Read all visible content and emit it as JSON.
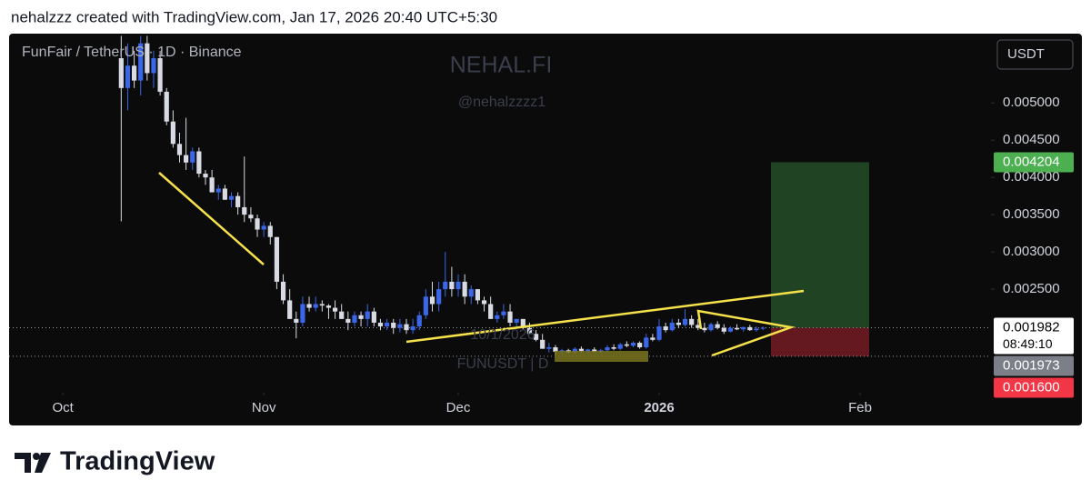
{
  "page": {
    "header": "nehalzzz created with TradingView.com, Jan 17, 2026 20:40 UTC+5:30",
    "logo": "TradingView"
  },
  "chart_data": {
    "type": "candlestick",
    "title": "FunFair / TetherUS · 1D · Binance",
    "currency": "USDT",
    "watermark": "NEHAL.FI",
    "watermark_sub": "@nehalzzzz1",
    "annotations": [
      "10/1/2026",
      "FUNUSDT | D"
    ],
    "countdown": "08:49:10",
    "up_color": "#3a66e8",
    "down_color": "#d8dbe3",
    "xlim": [
      -17.3,
      134.2
    ],
    "xticks": [
      {
        "value": -9,
        "label": "Oct"
      },
      {
        "value": 22,
        "label": "Nov"
      },
      {
        "value": 52,
        "label": "Dec"
      },
      {
        "value": 83,
        "label": "2026"
      },
      {
        "value": 114,
        "label": "Feb"
      }
    ],
    "ylim": [
      0.00111,
      0.00593
    ],
    "yticks": [
      {
        "value": 0.0025,
        "label": "0.002500"
      },
      {
        "value": 0.003,
        "label": "0.003000"
      },
      {
        "value": 0.0035,
        "label": "0.003500"
      },
      {
        "value": 0.004,
        "label": "0.004000"
      },
      {
        "value": 0.0045,
        "label": "0.004500"
      },
      {
        "value": 0.005,
        "label": "0.005000"
      }
    ],
    "price_labels": [
      {
        "value": 0.004204,
        "label": "0.004204",
        "color": "#4caf50",
        "text_color": "#ffffff"
      },
      {
        "value": 0.001982,
        "label": "0.001982",
        "color": "#ffffff",
        "text_color": "#000000"
      },
      {
        "value": 0.001973,
        "label": "0.001973",
        "color": "#7c7f88",
        "text_color": "#ffffff"
      },
      {
        "value": 0.0016,
        "label": "0.001600",
        "color": "#f23645",
        "text_color": "#ffffff"
      }
    ],
    "ohlc": [
      [
        0.0056,
        0.0059,
        0.00341,
        0.0052
      ],
      [
        0.0052,
        0.0058,
        0.0049,
        0.0055
      ],
      [
        0.0055,
        0.0057,
        0.0052,
        0.0053
      ],
      [
        0.0053,
        0.0059,
        0.0051,
        0.0058
      ],
      [
        0.0058,
        0.0059,
        0.0053,
        0.0054
      ],
      [
        0.0054,
        0.0057,
        0.0052,
        0.0056
      ],
      [
        0.0056,
        0.0057,
        0.0051,
        0.00515
      ],
      [
        0.00515,
        0.0052,
        0.0047,
        0.00475
      ],
      [
        0.00475,
        0.0049,
        0.0044,
        0.00445
      ],
      [
        0.00445,
        0.0046,
        0.0042,
        0.0043
      ],
      [
        0.0043,
        0.0048,
        0.0041,
        0.0042
      ],
      [
        0.0042,
        0.0044,
        0.0041,
        0.00435
      ],
      [
        0.00435,
        0.0044,
        0.004,
        0.00405
      ],
      [
        0.00405,
        0.0041,
        0.0039,
        0.004
      ],
      [
        0.004,
        0.0041,
        0.0038,
        0.0038
      ],
      [
        0.0038,
        0.0039,
        0.0037,
        0.00385
      ],
      [
        0.00385,
        0.0039,
        0.0037,
        0.0037
      ],
      [
        0.0037,
        0.0038,
        0.0036,
        0.00375
      ],
      [
        0.00375,
        0.0038,
        0.0035,
        0.0036
      ],
      [
        0.0036,
        0.00428,
        0.0034,
        0.0035
      ],
      [
        0.0035,
        0.0036,
        0.0034,
        0.00345
      ],
      [
        0.00345,
        0.0035,
        0.0032,
        0.0033
      ],
      [
        0.0033,
        0.0034,
        0.0032,
        0.00335
      ],
      [
        0.00335,
        0.0034,
        0.0031,
        0.0032
      ],
      [
        0.0032,
        0.0032,
        0.0025,
        0.0026
      ],
      [
        0.0026,
        0.0027,
        0.0023,
        0.00235
      ],
      [
        0.00235,
        0.0025,
        0.0021,
        0.0021
      ],
      [
        0.0021,
        0.0022,
        0.00184,
        0.00205
      ],
      [
        0.00205,
        0.0024,
        0.002,
        0.0023
      ],
      [
        0.0023,
        0.0024,
        0.0022,
        0.00225
      ],
      [
        0.00225,
        0.0024,
        0.0022,
        0.0023
      ],
      [
        0.0023,
        0.00235,
        0.0022,
        0.00228
      ],
      [
        0.00228,
        0.0023,
        0.0021,
        0.00225
      ],
      [
        0.00225,
        0.00235,
        0.0021,
        0.0022
      ],
      [
        0.0022,
        0.0023,
        0.0021,
        0.0021
      ],
      [
        0.0021,
        0.0022,
        0.00195,
        0.00205
      ],
      [
        0.00205,
        0.0022,
        0.002,
        0.00215
      ],
      [
        0.00215,
        0.0022,
        0.002,
        0.0021
      ],
      [
        0.0021,
        0.0023,
        0.002,
        0.0022
      ],
      [
        0.0022,
        0.00225,
        0.002,
        0.00205
      ],
      [
        0.00205,
        0.0021,
        0.00195,
        0.002
      ],
      [
        0.002,
        0.0021,
        0.00195,
        0.00205
      ],
      [
        0.00205,
        0.0021,
        0.0019,
        0.00198
      ],
      [
        0.00198,
        0.0021,
        0.00192,
        0.00203
      ],
      [
        0.00203,
        0.0021,
        0.0019,
        0.00195
      ],
      [
        0.00195,
        0.0021,
        0.0019,
        0.002
      ],
      [
        0.002,
        0.0022,
        0.00195,
        0.00215
      ],
      [
        0.00215,
        0.0025,
        0.0021,
        0.0024
      ],
      [
        0.0024,
        0.0026,
        0.0022,
        0.0023
      ],
      [
        0.0023,
        0.0026,
        0.0022,
        0.0025
      ],
      [
        0.0025,
        0.003,
        0.0024,
        0.0026
      ],
      [
        0.0026,
        0.0028,
        0.0024,
        0.0025
      ],
      [
        0.0025,
        0.0027,
        0.0024,
        0.0026
      ],
      [
        0.0026,
        0.0027,
        0.0023,
        0.0024
      ],
      [
        0.0024,
        0.00255,
        0.0023,
        0.0025
      ],
      [
        0.0025,
        0.0025,
        0.0023,
        0.00235
      ],
      [
        0.00235,
        0.0024,
        0.0022,
        0.0023
      ],
      [
        0.0023,
        0.0024,
        0.0021,
        0.0021
      ],
      [
        0.0021,
        0.0022,
        0.00205,
        0.00215
      ],
      [
        0.00215,
        0.0023,
        0.0021,
        0.0022
      ],
      [
        0.0022,
        0.0023,
        0.002,
        0.00205
      ],
      [
        0.00205,
        0.0021,
        0.002,
        0.0021
      ],
      [
        0.0021,
        0.0021,
        0.00195,
        0.00198
      ],
      [
        0.00198,
        0.00205,
        0.0019,
        0.0019
      ],
      [
        0.0019,
        0.00195,
        0.0018,
        0.00182
      ],
      [
        0.00182,
        0.0019,
        0.0017,
        0.0017
      ],
      [
        0.0017,
        0.00178,
        0.00165,
        0.00172
      ],
      [
        0.00172,
        0.00175,
        0.00162,
        0.00166
      ],
      [
        0.00166,
        0.0017,
        0.00162,
        0.00168
      ],
      [
        0.00168,
        0.0017,
        0.00164,
        0.00165
      ],
      [
        0.00165,
        0.00172,
        0.00163,
        0.0017
      ],
      [
        0.0017,
        0.00173,
        0.00165,
        0.00167
      ],
      [
        0.00167,
        0.0017,
        0.00163,
        0.00169
      ],
      [
        0.00169,
        0.00172,
        0.00165,
        0.00166
      ],
      [
        0.00166,
        0.0017,
        0.00164,
        0.00168
      ],
      [
        0.00168,
        0.00175,
        0.00166,
        0.00172
      ],
      [
        0.00172,
        0.00176,
        0.00168,
        0.0017
      ],
      [
        0.0017,
        0.00178,
        0.00168,
        0.00176
      ],
      [
        0.00176,
        0.0018,
        0.00172,
        0.00174
      ],
      [
        0.00174,
        0.0018,
        0.00172,
        0.00178
      ],
      [
        0.00178,
        0.0018,
        0.0017,
        0.00172
      ],
      [
        0.00172,
        0.0019,
        0.0017,
        0.00185
      ],
      [
        0.00185,
        0.0019,
        0.0018,
        0.00182
      ],
      [
        0.00182,
        0.0021,
        0.0018,
        0.002
      ],
      [
        0.002,
        0.00205,
        0.00192,
        0.00195
      ],
      [
        0.00195,
        0.0021,
        0.00193,
        0.00205
      ],
      [
        0.00205,
        0.0021,
        0.00198,
        0.00202
      ],
      [
        0.00202,
        0.00223,
        0.002,
        0.0021
      ],
      [
        0.0021,
        0.00215,
        0.00198,
        0.00202
      ],
      [
        0.00202,
        0.0021,
        0.00195,
        0.00198
      ],
      [
        0.00198,
        0.00205,
        0.00192,
        0.00195
      ],
      [
        0.00195,
        0.00205,
        0.00193,
        0.00203
      ],
      [
        0.00203,
        0.00207,
        0.00196,
        0.00198
      ],
      [
        0.00198,
        0.00203,
        0.0019,
        0.00193
      ],
      [
        0.00193,
        0.002,
        0.00192,
        0.00198
      ],
      [
        0.00198,
        0.00203,
        0.00195,
        0.00196
      ],
      [
        0.00196,
        0.002,
        0.00193,
        0.00199
      ],
      [
        0.00199,
        0.00202,
        0.00194,
        0.00195
      ],
      [
        0.00195,
        0.002,
        0.00193,
        0.00197
      ],
      [
        0.00197,
        0.002,
        0.00195,
        0.001982
      ]
    ]
  }
}
